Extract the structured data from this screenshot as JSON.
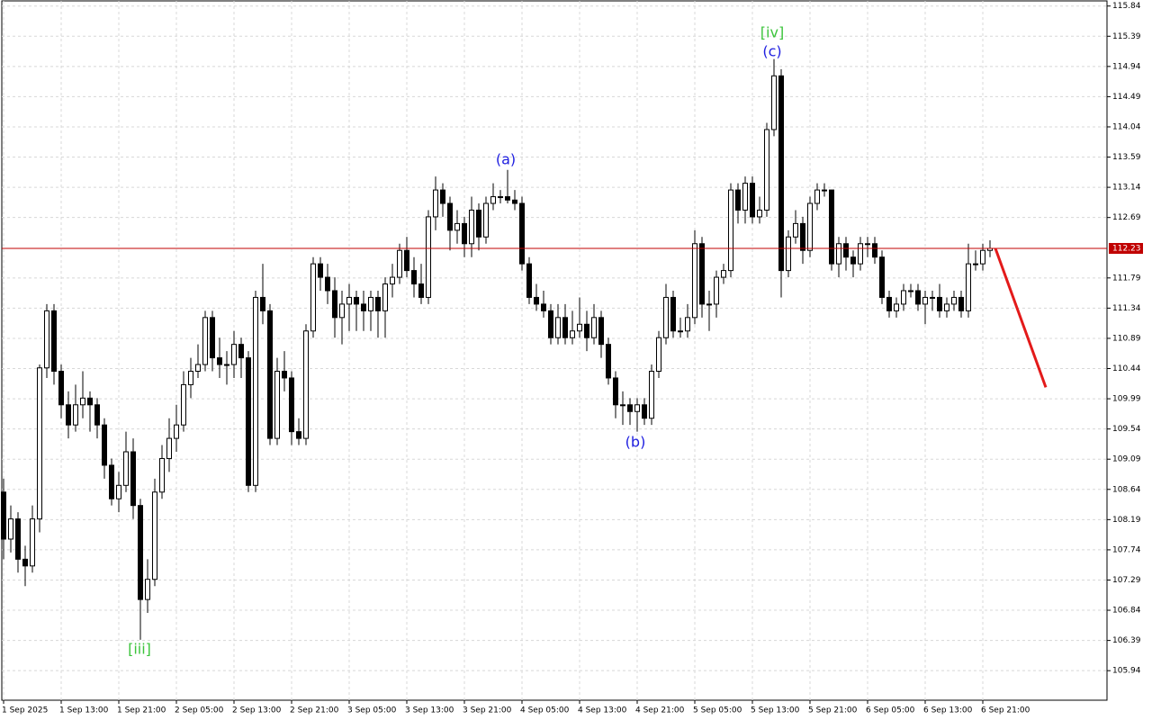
{
  "chart_data": {
    "type": "candlestick",
    "candles": [
      [
        108.6,
        108.8,
        107.6,
        107.9
      ],
      [
        107.9,
        108.4,
        107.7,
        108.2
      ],
      [
        108.2,
        108.3,
        107.4,
        107.6
      ],
      [
        107.6,
        107.8,
        107.2,
        107.5
      ],
      [
        107.5,
        108.4,
        107.4,
        108.2
      ],
      [
        108.2,
        110.5,
        108.0,
        110.45
      ],
      [
        110.45,
        111.4,
        110.3,
        111.3
      ],
      [
        111.3,
        111.4,
        110.2,
        110.4
      ],
      [
        110.4,
        110.5,
        109.7,
        109.9
      ],
      [
        109.9,
        110.1,
        109.4,
        109.6
      ],
      [
        109.6,
        110.2,
        109.5,
        109.9
      ],
      [
        109.9,
        110.4,
        109.7,
        110.0
      ],
      [
        110.0,
        110.1,
        109.5,
        109.9
      ],
      [
        109.9,
        110.0,
        109.4,
        109.6
      ],
      [
        109.6,
        109.7,
        108.8,
        109.0
      ],
      [
        109.0,
        109.1,
        108.4,
        108.5
      ],
      [
        108.5,
        108.9,
        108.3,
        108.7
      ],
      [
        108.7,
        109.5,
        108.6,
        109.2
      ],
      [
        109.2,
        109.4,
        108.2,
        108.4
      ],
      [
        108.4,
        108.5,
        106.4,
        107.0
      ],
      [
        107.0,
        107.6,
        106.8,
        107.3
      ],
      [
        107.3,
        108.8,
        107.2,
        108.6
      ],
      [
        108.6,
        109.3,
        108.5,
        109.1
      ],
      [
        109.1,
        109.7,
        108.9,
        109.4
      ],
      [
        109.4,
        109.9,
        109.2,
        109.6
      ],
      [
        109.6,
        110.4,
        109.5,
        110.2
      ],
      [
        110.2,
        110.6,
        110.0,
        110.4
      ],
      [
        110.4,
        110.8,
        110.3,
        110.5
      ],
      [
        110.5,
        111.3,
        110.4,
        111.2
      ],
      [
        111.2,
        111.3,
        110.4,
        110.6
      ],
      [
        110.6,
        110.9,
        110.3,
        110.5
      ],
      [
        110.5,
        110.7,
        110.2,
        110.5
      ],
      [
        110.5,
        111.0,
        110.3,
        110.8
      ],
      [
        110.8,
        110.9,
        110.3,
        110.6
      ],
      [
        110.6,
        110.7,
        108.6,
        108.7
      ],
      [
        108.7,
        111.6,
        108.6,
        111.5
      ],
      [
        111.5,
        112.0,
        111.1,
        111.3
      ],
      [
        111.3,
        111.4,
        109.3,
        109.4
      ],
      [
        109.4,
        110.6,
        109.3,
        110.4
      ],
      [
        110.4,
        110.7,
        110.1,
        110.3
      ],
      [
        110.3,
        110.4,
        109.3,
        109.5
      ],
      [
        109.5,
        109.7,
        109.3,
        109.4
      ],
      [
        109.4,
        111.1,
        109.3,
        111.0
      ],
      [
        111.0,
        112.1,
        110.9,
        112.0
      ],
      [
        112.0,
        112.1,
        111.6,
        111.8
      ],
      [
        111.8,
        112.0,
        111.4,
        111.6
      ],
      [
        111.6,
        111.8,
        110.9,
        111.2
      ],
      [
        111.2,
        111.6,
        110.8,
        111.4
      ],
      [
        111.4,
        111.7,
        111.0,
        111.5
      ],
      [
        111.5,
        111.6,
        111.0,
        111.4
      ],
      [
        111.4,
        111.6,
        111.0,
        111.3
      ],
      [
        111.3,
        111.6,
        111.0,
        111.5
      ],
      [
        111.5,
        111.6,
        110.9,
        111.3
      ],
      [
        111.3,
        111.8,
        110.9,
        111.7
      ],
      [
        111.7,
        112.0,
        111.5,
        111.8
      ],
      [
        111.8,
        112.3,
        111.7,
        112.2
      ],
      [
        112.2,
        112.4,
        111.8,
        111.9
      ],
      [
        111.9,
        112.1,
        111.5,
        111.7
      ],
      [
        111.7,
        112.0,
        111.4,
        111.5
      ],
      [
        111.5,
        112.8,
        111.4,
        112.7
      ],
      [
        112.7,
        113.3,
        112.5,
        113.1
      ],
      [
        113.1,
        113.2,
        112.7,
        112.9
      ],
      [
        112.9,
        113.0,
        112.2,
        112.5
      ],
      [
        112.5,
        112.8,
        112.3,
        112.6
      ],
      [
        112.6,
        112.7,
        112.1,
        112.3
      ],
      [
        112.3,
        113.0,
        112.1,
        112.8
      ],
      [
        112.8,
        112.9,
        112.2,
        112.4
      ],
      [
        112.4,
        113.0,
        112.3,
        112.9
      ],
      [
        112.9,
        113.2,
        112.8,
        113.0
      ],
      [
        113.0,
        113.1,
        112.9,
        113.0
      ],
      [
        113.0,
        113.4,
        112.9,
        112.95
      ],
      [
        112.95,
        113.1,
        112.8,
        112.9
      ],
      [
        112.9,
        113.0,
        111.9,
        112.0
      ],
      [
        112.0,
        112.1,
        111.4,
        111.5
      ],
      [
        111.5,
        111.7,
        111.3,
        111.4
      ],
      [
        111.4,
        111.6,
        111.2,
        111.3
      ],
      [
        111.3,
        111.4,
        110.8,
        110.9
      ],
      [
        110.9,
        111.4,
        110.8,
        111.2
      ],
      [
        111.2,
        111.4,
        110.8,
        110.9
      ],
      [
        110.9,
        111.3,
        110.8,
        111.0
      ],
      [
        111.0,
        111.5,
        110.9,
        111.1
      ],
      [
        111.1,
        111.3,
        110.7,
        110.9
      ],
      [
        110.9,
        111.4,
        110.8,
        111.2
      ],
      [
        111.2,
        111.3,
        110.6,
        110.8
      ],
      [
        110.8,
        110.9,
        110.2,
        110.3
      ],
      [
        110.3,
        110.4,
        109.7,
        109.9
      ],
      [
        109.9,
        110.1,
        109.6,
        109.9
      ],
      [
        109.9,
        110.0,
        109.6,
        109.8
      ],
      [
        109.8,
        110.0,
        109.5,
        109.9
      ],
      [
        109.9,
        110.0,
        109.6,
        109.7
      ],
      [
        109.7,
        110.5,
        109.6,
        110.4
      ],
      [
        110.4,
        111.0,
        110.3,
        110.9
      ],
      [
        110.9,
        111.7,
        110.8,
        111.5
      ],
      [
        111.5,
        111.6,
        110.9,
        111.0
      ],
      [
        111.0,
        111.2,
        110.9,
        111.0
      ],
      [
        111.0,
        111.4,
        110.9,
        111.2
      ],
      [
        111.2,
        112.5,
        111.1,
        112.3
      ],
      [
        112.3,
        112.4,
        111.2,
        111.4
      ],
      [
        111.4,
        111.6,
        111.0,
        111.4
      ],
      [
        111.4,
        111.9,
        111.2,
        111.8
      ],
      [
        111.8,
        112.0,
        111.7,
        111.9
      ],
      [
        111.9,
        113.2,
        111.8,
        113.1
      ],
      [
        113.1,
        113.2,
        112.6,
        112.8
      ],
      [
        112.8,
        113.3,
        112.6,
        113.2
      ],
      [
        113.2,
        113.3,
        112.6,
        112.7
      ],
      [
        112.7,
        113.0,
        112.6,
        112.8
      ],
      [
        112.8,
        114.1,
        112.7,
        114.0
      ],
      [
        114.0,
        115.05,
        113.9,
        114.8
      ],
      [
        114.8,
        114.9,
        111.5,
        111.9
      ],
      [
        111.9,
        112.5,
        111.8,
        112.4
      ],
      [
        112.4,
        112.8,
        112.3,
        112.6
      ],
      [
        112.6,
        112.7,
        112.0,
        112.2
      ],
      [
        112.2,
        113.0,
        112.1,
        112.9
      ],
      [
        112.9,
        113.2,
        112.8,
        113.1
      ],
      [
        113.1,
        113.2,
        113.0,
        113.1
      ],
      [
        113.1,
        113.1,
        111.9,
        112.0
      ],
      [
        112.0,
        112.4,
        111.8,
        112.3
      ],
      [
        112.3,
        112.4,
        111.9,
        112.1
      ],
      [
        112.1,
        112.2,
        111.8,
        112.0
      ],
      [
        112.0,
        112.4,
        111.9,
        112.3
      ],
      [
        112.3,
        112.4,
        112.1,
        112.3
      ],
      [
        112.3,
        112.4,
        112.0,
        112.1
      ],
      [
        112.1,
        112.2,
        111.4,
        111.5
      ],
      [
        111.5,
        111.6,
        111.2,
        111.3
      ],
      [
        111.3,
        111.5,
        111.2,
        111.4
      ],
      [
        111.4,
        111.7,
        111.3,
        111.6
      ],
      [
        111.6,
        111.7,
        111.5,
        111.6
      ],
      [
        111.6,
        111.7,
        111.3,
        111.4
      ],
      [
        111.4,
        111.6,
        111.1,
        111.5
      ],
      [
        111.5,
        111.6,
        111.3,
        111.5
      ],
      [
        111.5,
        111.7,
        111.2,
        111.3
      ],
      [
        111.3,
        111.5,
        111.2,
        111.4
      ],
      [
        111.4,
        111.6,
        111.3,
        111.5
      ],
      [
        111.5,
        111.6,
        111.2,
        111.3
      ],
      [
        111.3,
        112.3,
        111.2,
        112.0
      ],
      [
        112.0,
        112.2,
        111.9,
        112.0
      ],
      [
        112.0,
        112.3,
        111.9,
        112.2
      ],
      [
        112.2,
        112.35,
        112.1,
        112.23
      ]
    ],
    "categories": [
      "1 Sep 2025",
      null,
      null,
      null,
      null,
      null,
      null,
      null,
      "1 Sep 13:00",
      null,
      null,
      null,
      null,
      null,
      null,
      null,
      "1 Sep 21:00",
      null,
      null,
      null,
      null,
      null,
      null,
      null,
      "2 Sep 05:00",
      null,
      null,
      null,
      null,
      null,
      null,
      null,
      "2 Sep 13:00",
      null,
      null,
      null,
      null,
      null,
      null,
      null,
      "2 Sep 21:00",
      null,
      null,
      null,
      null,
      null,
      null,
      null,
      "3 Sep 05:00",
      null,
      null,
      null,
      null,
      null,
      null,
      null,
      "3 Sep 13:00",
      null,
      null,
      null,
      null,
      null,
      null,
      null,
      "3 Sep 21:00",
      null,
      null,
      null,
      null,
      null,
      null,
      null,
      "4 Sep 05:00",
      null,
      null,
      null,
      null,
      null,
      null,
      null,
      "4 Sep 13:00",
      null,
      null,
      null,
      null,
      null,
      null,
      null,
      "4 Sep 21:00",
      null,
      null,
      null,
      null,
      null,
      null,
      null,
      "5 Sep 05:00",
      null,
      null,
      null,
      null,
      null,
      null,
      null,
      "5 Sep 13:00",
      null,
      null,
      null,
      null,
      null,
      null,
      null,
      "5 Sep 21:00",
      null,
      null,
      null,
      null,
      null,
      null,
      null,
      "6 Sep 05:00",
      null,
      null,
      null,
      null,
      null,
      null,
      null,
      "6 Sep 13:00",
      null,
      null,
      null,
      null,
      null,
      null,
      null,
      "6 Sep 21:00",
      null
    ],
    "ylim": [
      105.5,
      115.93
    ],
    "yticks": [
      115.84,
      115.39,
      114.94,
      114.49,
      114.04,
      113.59,
      113.14,
      112.69,
      111.79,
      111.34,
      110.89,
      110.44,
      109.99,
      109.54,
      109.09,
      108.64,
      108.19,
      107.74,
      107.29,
      106.84,
      106.39,
      105.94
    ],
    "grid": true,
    "bull_color": "#ffffff",
    "bear_color": "#000000",
    "current_price": {
      "value": 112.23,
      "color": "#c00000"
    },
    "forecast": {
      "values": [
        112.23,
        110.16
      ],
      "color": "#e31a1a"
    },
    "wave_labels": [
      {
        "text": "[iii]",
        "color": "#3cc43c"
      },
      {
        "text": "(a)",
        "color": "#2020e0"
      },
      {
        "text": "(b)",
        "color": "#2020e0"
      },
      {
        "text": "(c)",
        "color": "#2020e0"
      },
      {
        "text": "[iv]",
        "color": "#3cc43c"
      }
    ]
  }
}
